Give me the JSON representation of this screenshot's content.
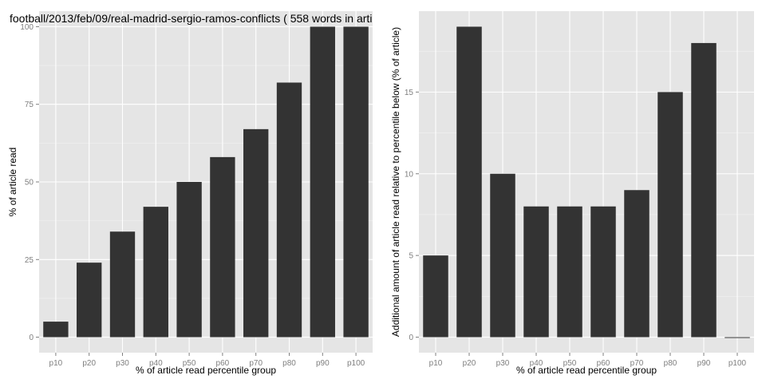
{
  "chart_data": [
    {
      "type": "bar",
      "title": "football/2013/feb/09/real-madrid-sergio-ramos-conflicts ( 558 words in arti",
      "xlabel": "% of article read percentile group",
      "ylabel": "% of article read",
      "categories": [
        "p10",
        "p20",
        "p30",
        "p40",
        "p50",
        "p60",
        "p70",
        "p80",
        "p90",
        "p100"
      ],
      "values": [
        5,
        24,
        34,
        42,
        50,
        58,
        67,
        82,
        100,
        100
      ],
      "ylim": [
        -5,
        105
      ],
      "yticks": [
        0,
        25,
        50,
        75,
        100
      ],
      "yminor": [
        12.5,
        37.5,
        62.5,
        87.5
      ],
      "grid": true,
      "colors": {
        "bar": "#333333",
        "panel": "#e5e5e5"
      }
    },
    {
      "type": "bar",
      "title": "",
      "xlabel": "% of article read percentile group",
      "ylabel": "Additional amount of article read relative to percentile below (% of article)",
      "categories": [
        "p10",
        "p20",
        "p30",
        "p40",
        "p50",
        "p60",
        "p70",
        "p80",
        "p90",
        "p100"
      ],
      "values": [
        5,
        19,
        10,
        8,
        8,
        8,
        9,
        15,
        18,
        0
      ],
      "ylim": [
        -0.95,
        19.95
      ],
      "yticks": [
        0,
        5,
        10,
        15
      ],
      "yminor": [
        2.5,
        7.5,
        12.5,
        17.5
      ],
      "grid": true,
      "colors": {
        "bar": "#333333",
        "panel": "#e5e5e5"
      }
    }
  ]
}
